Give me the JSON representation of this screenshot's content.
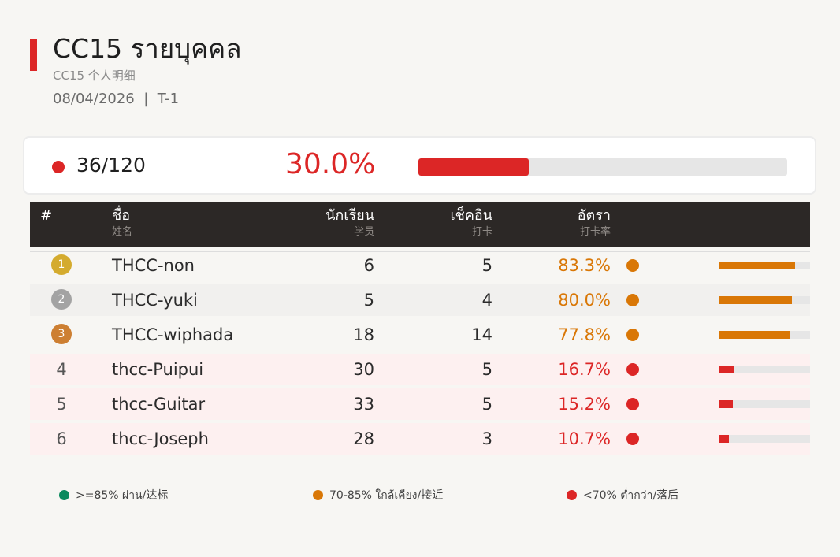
{
  "header": {
    "title": "CC15  รายบุคคล",
    "subtitle": "CC15  个人明细",
    "date": "08/04/2026",
    "separator": "|",
    "period": "T-1"
  },
  "summary": {
    "count": "36/120",
    "percent_text": "30.0%",
    "progress": 0.3,
    "color": "#dc2626"
  },
  "table": {
    "columns": {
      "rank": {
        "label": "#"
      },
      "name": {
        "label": "ชื่อ",
        "sub": "姓名"
      },
      "students": {
        "label": "นักเรียน",
        "sub": "学员"
      },
      "checkin": {
        "label": "เช็คอิน",
        "sub": "打卡"
      },
      "rate": {
        "label": "อัตรา",
        "sub": "打卡率"
      }
    },
    "rows": [
      {
        "rank": "1",
        "medal": "gold",
        "name": "THCC-non",
        "students": "6",
        "checkin": "5",
        "rate": "83.3%",
        "rate_value": 0.833,
        "status": "near"
      },
      {
        "rank": "2",
        "medal": "silver",
        "name": "THCC-yuki",
        "students": "5",
        "checkin": "4",
        "rate": "80.0%",
        "rate_value": 0.8,
        "status": "near"
      },
      {
        "rank": "3",
        "medal": "bronze",
        "name": "THCC-wiphada",
        "students": "18",
        "checkin": "14",
        "rate": "77.8%",
        "rate_value": 0.778,
        "status": "near"
      },
      {
        "rank": "4",
        "medal": "",
        "name": "thcc-Puipui",
        "students": "30",
        "checkin": "5",
        "rate": "16.7%",
        "rate_value": 0.167,
        "status": "behind"
      },
      {
        "rank": "5",
        "medal": "",
        "name": "thcc-Guitar",
        "students": "33",
        "checkin": "5",
        "rate": "15.2%",
        "rate_value": 0.152,
        "status": "behind"
      },
      {
        "rank": "6",
        "medal": "",
        "name": "thcc-Joseph",
        "students": "28",
        "checkin": "3",
        "rate": "10.7%",
        "rate_value": 0.107,
        "status": "behind"
      }
    ]
  },
  "legend": [
    {
      "label": ">=85% ผ่าน/达标",
      "status": "pass"
    },
    {
      "label": "70-85% ใกล้เคียง/接近",
      "status": "near"
    },
    {
      "label": "<70% ต่ำกว่า/落后",
      "status": "behind"
    }
  ],
  "colors": {
    "pass": "#0b8a5e",
    "near": "#d97706",
    "behind": "#dc2626",
    "gold": "#d4ab2e",
    "silver": "#a3a3a3",
    "bronze": "#cd7f32",
    "accent": "#dc2626"
  }
}
